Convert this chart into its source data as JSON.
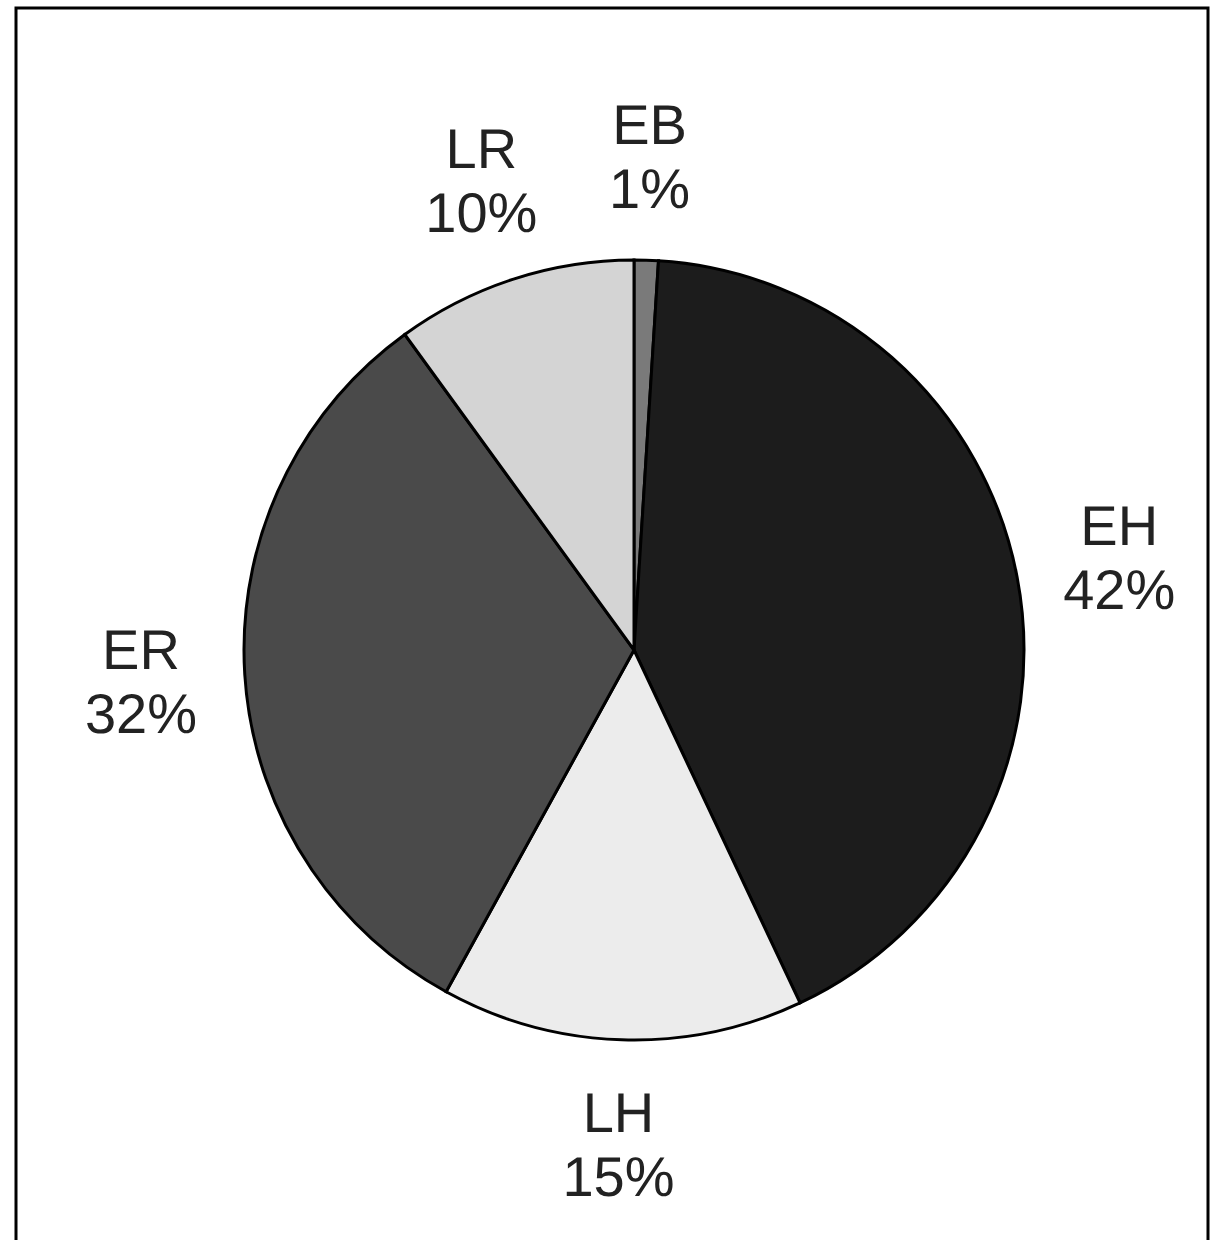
{
  "chart_data": {
    "type": "pie",
    "categories": [
      "EB",
      "EH",
      "LH",
      "ER",
      "LR"
    ],
    "values": [
      1,
      42,
      15,
      32,
      10
    ],
    "value_labels": [
      "1%",
      "42%",
      "15%",
      "32%",
      "10%"
    ],
    "colors": [
      "#7a7a7a",
      "#1c1c1c",
      "#ececec",
      "#4a4a4a",
      "#d4d4d4"
    ],
    "legend": false
  }
}
